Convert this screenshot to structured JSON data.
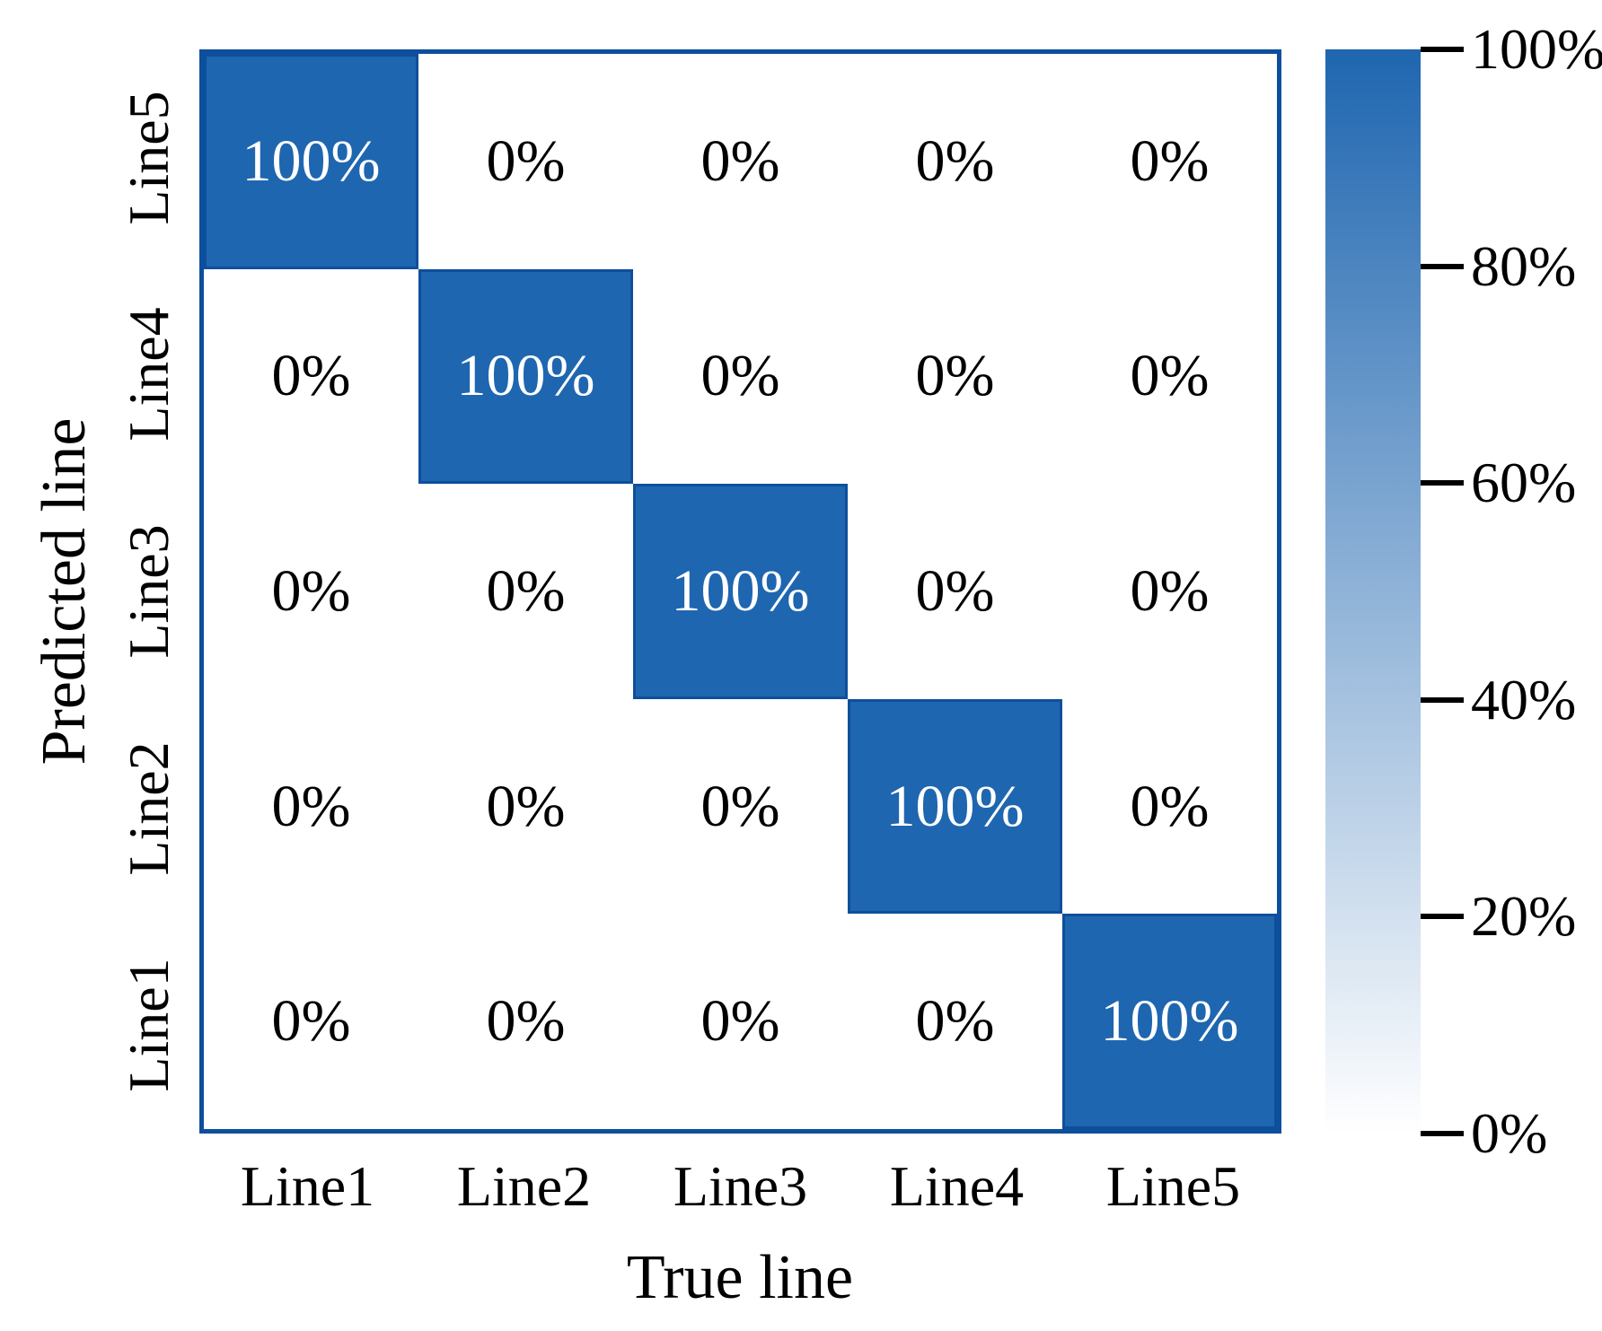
{
  "chart_data": {
    "type": "heatmap",
    "title": "",
    "xlabel": "True line",
    "ylabel": "Predicted line",
    "x_categories": [
      "Line1",
      "Line2",
      "Line3",
      "Line4",
      "Line5"
    ],
    "y_categories_top_to_bottom": [
      "Line5",
      "Line4",
      "Line3",
      "Line2",
      "Line1"
    ],
    "values_percent_rows_top_to_bottom": [
      [
        100,
        0,
        0,
        0,
        0
      ],
      [
        0,
        100,
        0,
        0,
        0
      ],
      [
        0,
        0,
        100,
        0,
        0
      ],
      [
        0,
        0,
        0,
        100,
        0
      ],
      [
        0,
        0,
        0,
        0,
        100
      ]
    ],
    "cell_labels": [
      [
        "100%",
        "0%",
        "0%",
        "0%",
        "0%"
      ],
      [
        "0%",
        "100%",
        "0%",
        "0%",
        "0%"
      ],
      [
        "0%",
        "0%",
        "100%",
        "0%",
        "0%"
      ],
      [
        "0%",
        "0%",
        "0%",
        "100%",
        "0%"
      ],
      [
        "0%",
        "0%",
        "0%",
        "0%",
        "100%"
      ]
    ],
    "colorbar": {
      "tick_labels": [
        "100%",
        "80%",
        "60%",
        "40%",
        "20%",
        "0%"
      ],
      "tick_values": [
        100,
        80,
        60,
        40,
        20,
        0
      ],
      "range_min": 0,
      "range_max": 100,
      "gradient_top_color": "#1f66b0",
      "gradient_bottom_color": "#ffffff",
      "position": "right"
    },
    "colors": {
      "cell_fill": "#1f66b0",
      "cell_edge": "#0d4f9c",
      "frame": "#0d4f9c",
      "cell_text_on_fill": "#ffffff",
      "cell_text": "#000000",
      "tick_text": "#000000"
    },
    "grid": false,
    "legend_position": "right-colorbar"
  }
}
